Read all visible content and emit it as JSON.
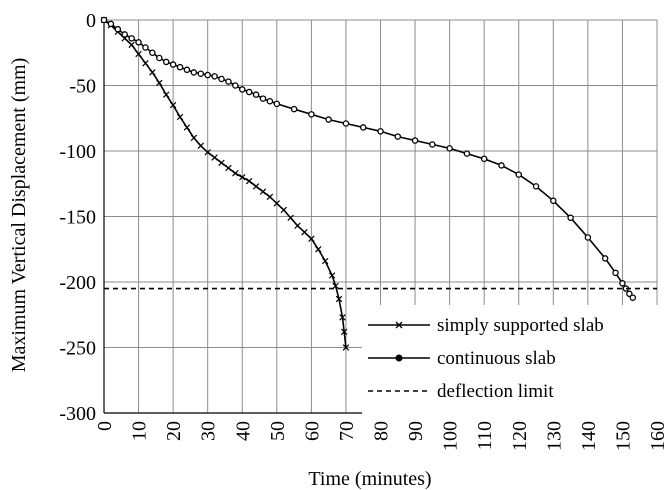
{
  "chart_data": {
    "type": "line",
    "title": "",
    "xlabel": "Time (minutes)",
    "ylabel": "Maximum Vertical Displacement (mm)",
    "xlim": [
      0,
      160
    ],
    "ylim": [
      -300,
      0
    ],
    "xticks": [
      0,
      10,
      20,
      30,
      40,
      50,
      60,
      70,
      80,
      90,
      100,
      110,
      120,
      130,
      140,
      150,
      160
    ],
    "yticks": [
      0,
      -50,
      -100,
      -150,
      -200,
      -250,
      -300
    ],
    "grid": true,
    "legend_position": "bottom-right",
    "series": [
      {
        "name": "simply supported slab",
        "marker": "x",
        "color": "#000000",
        "points": [
          [
            0,
            0
          ],
          [
            2,
            -4
          ],
          [
            4,
            -9
          ],
          [
            6,
            -14
          ],
          [
            8,
            -19
          ],
          [
            10,
            -26
          ],
          [
            12,
            -33
          ],
          [
            14,
            -40
          ],
          [
            16,
            -48
          ],
          [
            18,
            -57
          ],
          [
            20,
            -65
          ],
          [
            22,
            -74
          ],
          [
            24,
            -82
          ],
          [
            26,
            -90
          ],
          [
            28,
            -96
          ],
          [
            30,
            -101
          ],
          [
            32,
            -105
          ],
          [
            34,
            -109
          ],
          [
            36,
            -113
          ],
          [
            38,
            -117
          ],
          [
            40,
            -120
          ],
          [
            42,
            -123
          ],
          [
            44,
            -127
          ],
          [
            46,
            -131
          ],
          [
            48,
            -135
          ],
          [
            50,
            -140
          ],
          [
            52,
            -145
          ],
          [
            54,
            -151
          ],
          [
            56,
            -157
          ],
          [
            58,
            -162
          ],
          [
            60,
            -167
          ],
          [
            62,
            -175
          ],
          [
            64,
            -184
          ],
          [
            66,
            -195
          ],
          [
            67,
            -203
          ],
          [
            68,
            -213
          ],
          [
            69,
            -227
          ],
          [
            69.5,
            -238
          ],
          [
            70,
            -250
          ]
        ]
      },
      {
        "name": "continuous slab",
        "marker": "o",
        "color": "#000000",
        "points": [
          [
            0,
            0
          ],
          [
            2,
            -3
          ],
          [
            4,
            -7
          ],
          [
            6,
            -11
          ],
          [
            8,
            -14
          ],
          [
            10,
            -17
          ],
          [
            12,
            -21
          ],
          [
            14,
            -25
          ],
          [
            16,
            -29
          ],
          [
            18,
            -32
          ],
          [
            20,
            -34
          ],
          [
            22,
            -36
          ],
          [
            24,
            -38
          ],
          [
            26,
            -40
          ],
          [
            28,
            -41
          ],
          [
            30,
            -42
          ],
          [
            32,
            -43
          ],
          [
            34,
            -45
          ],
          [
            36,
            -47
          ],
          [
            38,
            -50
          ],
          [
            40,
            -53
          ],
          [
            42,
            -55
          ],
          [
            44,
            -57
          ],
          [
            46,
            -60
          ],
          [
            48,
            -62
          ],
          [
            50,
            -64
          ],
          [
            55,
            -68
          ],
          [
            60,
            -72
          ],
          [
            65,
            -76
          ],
          [
            70,
            -79
          ],
          [
            75,
            -82
          ],
          [
            80,
            -85
          ],
          [
            85,
            -89
          ],
          [
            90,
            -92
          ],
          [
            95,
            -95
          ],
          [
            100,
            -98
          ],
          [
            105,
            -102
          ],
          [
            110,
            -106
          ],
          [
            115,
            -111
          ],
          [
            120,
            -118
          ],
          [
            125,
            -127
          ],
          [
            130,
            -138
          ],
          [
            135,
            -151
          ],
          [
            140,
            -166
          ],
          [
            145,
            -182
          ],
          [
            148,
            -193
          ],
          [
            150,
            -201
          ],
          [
            151,
            -205
          ],
          [
            152,
            -209
          ],
          [
            153,
            -212
          ]
        ]
      },
      {
        "name": "deflection limit",
        "style": "dashed",
        "color": "#000000",
        "points": [
          [
            0,
            -205
          ],
          [
            160,
            -205
          ]
        ]
      }
    ]
  }
}
